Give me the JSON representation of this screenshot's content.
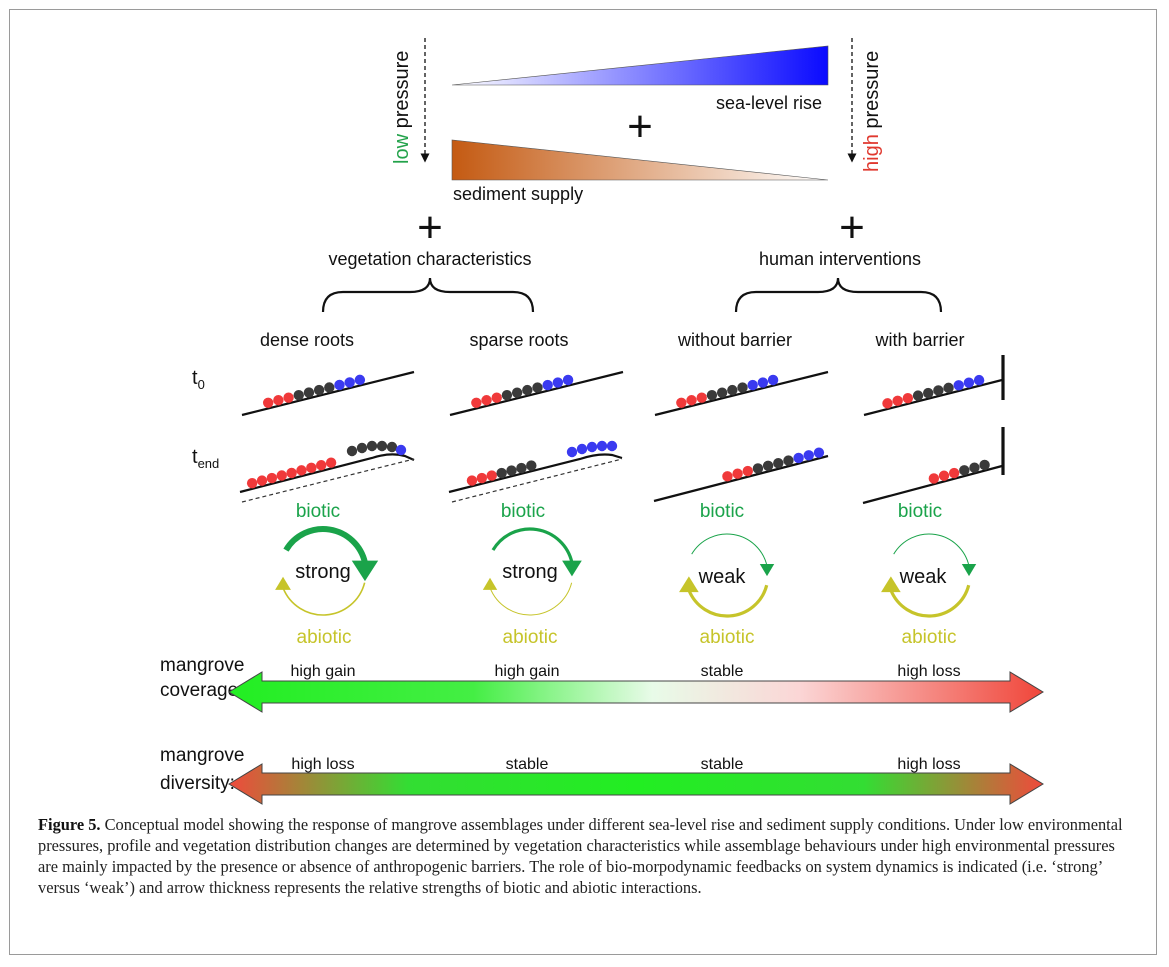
{
  "figure": {
    "pressure": {
      "low_word": "low",
      "high_word": "high",
      "pressure_word": "pressure",
      "low_color": "#22a24a",
      "high_color": "#e0392f"
    },
    "sea_level_label": "sea-level rise",
    "sediment_label": "sediment supply",
    "plus": "+",
    "vegetation_heading": "vegetation characteristics",
    "human_heading": "human interventions",
    "t0_base": "t",
    "t0_sub": "0",
    "tend_base": "t",
    "tend_sub": "end",
    "columns": [
      {
        "title": "dense roots",
        "strength": "strong"
      },
      {
        "title": "sparse roots",
        "strength": "strong"
      },
      {
        "title": "without barrier",
        "strength": "weak"
      },
      {
        "title": "with barrier",
        "strength": "weak"
      }
    ],
    "biotic_label": "biotic",
    "abiotic_label": "abiotic",
    "coverage": {
      "label_line1": "mangrove",
      "label_line2": "coverage:",
      "values": [
        "high gain",
        "high gain",
        "stable",
        "high loss"
      ]
    },
    "diversity": {
      "label_line1": "mangrove",
      "label_line2": "diversity:",
      "values": [
        "high loss",
        "stable",
        "stable",
        "high loss"
      ]
    },
    "colors": {
      "sea_level": "#1a1aff",
      "sediment": "#c8651c",
      "biotic": "#1aa34a",
      "abiotic": "#c6c42a",
      "dot_red": "#f0393a",
      "dot_black": "#3a3a3a",
      "dot_blue": "#3a3af0",
      "gain_green": "#33ee33",
      "loss_red": "#f04a3a"
    }
  },
  "caption": {
    "label": "Figure 5.",
    "text": " Conceptual model showing the response of mangrove assemblages under different sea-level rise and sediment supply conditions. Under low environmental pressures, profile and vegetation distribution changes are determined by vegetation characteristics while assemblage behaviours under high environmental pressures are mainly impacted by the presence or absence of anthropogenic barriers. The role of bio-morpodynamic feedbacks on system dynamics is indicated (i.e. ‘strong’ versus ‘weak’) and arrow thickness represents the relative strengths of biotic and abiotic interactions."
  }
}
